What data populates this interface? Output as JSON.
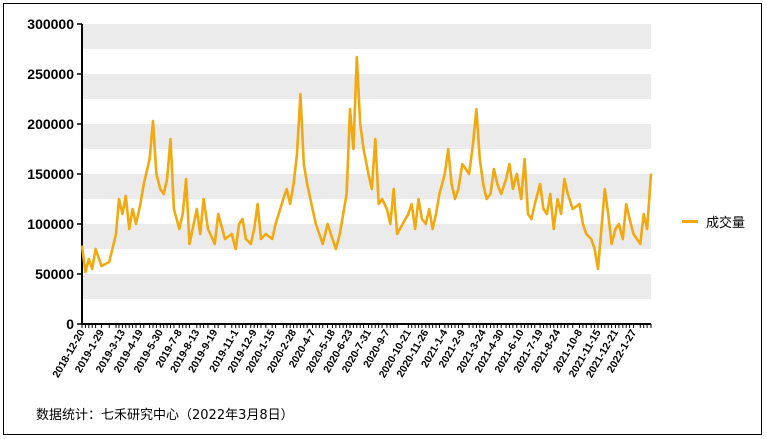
{
  "chart_data": {
    "type": "line",
    "series": [
      {
        "name": "成交量",
        "color": "#F2A90F",
        "points": [
          [
            "2018-12-20",
            78000
          ],
          [
            "2018-12-27",
            52000
          ],
          [
            "2019-1-3",
            65000
          ],
          [
            "2019-1-10",
            55000
          ],
          [
            "2019-1-17",
            75000
          ],
          [
            "2019-1-29",
            58000
          ],
          [
            "2019-2-14",
            62000
          ],
          [
            "2019-2-28",
            90000
          ],
          [
            "2019-3-6",
            125000
          ],
          [
            "2019-3-13",
            110000
          ],
          [
            "2019-3-20",
            128000
          ],
          [
            "2019-3-27",
            95000
          ],
          [
            "2019-4-3",
            115000
          ],
          [
            "2019-4-10",
            100000
          ],
          [
            "2019-4-19",
            120000
          ],
          [
            "2019-4-26",
            140000
          ],
          [
            "2019-5-8",
            165000
          ],
          [
            "2019-5-15",
            203000
          ],
          [
            "2019-5-22",
            150000
          ],
          [
            "2019-5-30",
            135000
          ],
          [
            "2019-6-6",
            130000
          ],
          [
            "2019-6-13",
            145000
          ],
          [
            "2019-6-20",
            185000
          ],
          [
            "2019-6-27",
            115000
          ],
          [
            "2019-7-8",
            95000
          ],
          [
            "2019-7-15",
            110000
          ],
          [
            "2019-7-22",
            145000
          ],
          [
            "2019-7-29",
            80000
          ],
          [
            "2019-8-13",
            115000
          ],
          [
            "2019-8-20",
            90000
          ],
          [
            "2019-8-27",
            125000
          ],
          [
            "2019-9-5",
            95000
          ],
          [
            "2019-9-19",
            80000
          ],
          [
            "2019-9-26",
            110000
          ],
          [
            "2019-10-10",
            85000
          ],
          [
            "2019-10-24",
            90000
          ],
          [
            "2019-11-1",
            75000
          ],
          [
            "2019-11-8",
            100000
          ],
          [
            "2019-11-15",
            105000
          ],
          [
            "2019-11-22",
            85000
          ],
          [
            "2019-12-2",
            80000
          ],
          [
            "2019-12-9",
            95000
          ],
          [
            "2019-12-16",
            120000
          ],
          [
            "2019-12-23",
            85000
          ],
          [
            "2020-1-2",
            90000
          ],
          [
            "2020-1-15",
            85000
          ],
          [
            "2020-1-22",
            100000
          ],
          [
            "2020-2-7",
            125000
          ],
          [
            "2020-2-14",
            135000
          ],
          [
            "2020-2-21",
            120000
          ],
          [
            "2020-2-28",
            140000
          ],
          [
            "2020-3-6",
            170000
          ],
          [
            "2020-3-13",
            230000
          ],
          [
            "2020-3-20",
            160000
          ],
          [
            "2020-3-27",
            140000
          ],
          [
            "2020-4-7",
            115000
          ],
          [
            "2020-4-14",
            100000
          ],
          [
            "2020-4-21",
            90000
          ],
          [
            "2020-4-28",
            80000
          ],
          [
            "2020-5-8",
            100000
          ],
          [
            "2020-5-18",
            85000
          ],
          [
            "2020-5-25",
            75000
          ],
          [
            "2020-6-2",
            90000
          ],
          [
            "2020-6-9",
            110000
          ],
          [
            "2020-6-16",
            130000
          ],
          [
            "2020-6-23",
            215000
          ],
          [
            "2020-6-30",
            175000
          ],
          [
            "2020-7-7",
            267000
          ],
          [
            "2020-7-14",
            200000
          ],
          [
            "2020-7-21",
            175000
          ],
          [
            "2020-7-31",
            150000
          ],
          [
            "2020-8-7",
            135000
          ],
          [
            "2020-8-14",
            185000
          ],
          [
            "2020-8-21",
            120000
          ],
          [
            "2020-8-28",
            125000
          ],
          [
            "2020-9-7",
            115000
          ],
          [
            "2020-9-14",
            100000
          ],
          [
            "2020-9-21",
            135000
          ],
          [
            "2020-9-28",
            90000
          ],
          [
            "2020-10-21",
            110000
          ],
          [
            "2020-10-28",
            120000
          ],
          [
            "2020-11-4",
            95000
          ],
          [
            "2020-11-11",
            125000
          ],
          [
            "2020-11-18",
            105000
          ],
          [
            "2020-11-26",
            100000
          ],
          [
            "2020-12-3",
            115000
          ],
          [
            "2020-12-10",
            95000
          ],
          [
            "2020-12-17",
            110000
          ],
          [
            "2020-12-24",
            130000
          ],
          [
            "2021-1-4",
            150000
          ],
          [
            "2021-1-11",
            175000
          ],
          [
            "2021-1-18",
            140000
          ],
          [
            "2021-1-25",
            125000
          ],
          [
            "2021-2-1",
            135000
          ],
          [
            "2021-2-9",
            160000
          ],
          [
            "2021-2-23",
            150000
          ],
          [
            "2021-3-3",
            180000
          ],
          [
            "2021-3-10",
            215000
          ],
          [
            "2021-3-17",
            165000
          ],
          [
            "2021-3-24",
            140000
          ],
          [
            "2021-3-31",
            125000
          ],
          [
            "2021-4-8",
            130000
          ],
          [
            "2021-4-15",
            155000
          ],
          [
            "2021-4-22",
            140000
          ],
          [
            "2021-4-30",
            130000
          ],
          [
            "2021-5-10",
            145000
          ],
          [
            "2021-5-17",
            160000
          ],
          [
            "2021-5-24",
            135000
          ],
          [
            "2021-6-1",
            150000
          ],
          [
            "2021-6-10",
            125000
          ],
          [
            "2021-6-17",
            165000
          ],
          [
            "2021-6-24",
            110000
          ],
          [
            "2021-7-1",
            105000
          ],
          [
            "2021-7-8",
            120000
          ],
          [
            "2021-7-19",
            140000
          ],
          [
            "2021-7-26",
            115000
          ],
          [
            "2021-8-2",
            110000
          ],
          [
            "2021-8-9",
            130000
          ],
          [
            "2021-8-16",
            95000
          ],
          [
            "2021-8-24",
            125000
          ],
          [
            "2021-8-31",
            110000
          ],
          [
            "2021-9-7",
            145000
          ],
          [
            "2021-9-14",
            130000
          ],
          [
            "2021-9-24",
            115000
          ],
          [
            "2021-10-8",
            120000
          ],
          [
            "2021-10-15",
            100000
          ],
          [
            "2021-10-22",
            90000
          ],
          [
            "2021-11-1",
            85000
          ],
          [
            "2021-11-8",
            75000
          ],
          [
            "2021-11-15",
            55000
          ],
          [
            "2021-11-22",
            95000
          ],
          [
            "2021-11-29",
            135000
          ],
          [
            "2021-12-6",
            110000
          ],
          [
            "2021-12-13",
            80000
          ],
          [
            "2021-12-21",
            95000
          ],
          [
            "2021-12-28",
            100000
          ],
          [
            "2022-1-5",
            85000
          ],
          [
            "2022-1-12",
            120000
          ],
          [
            "2022-1-19",
            105000
          ],
          [
            "2022-1-27",
            90000
          ],
          [
            "2022-2-10",
            80000
          ],
          [
            "2022-2-17",
            110000
          ],
          [
            "2022-2-24",
            95000
          ],
          [
            "2022-3-4",
            150000
          ]
        ]
      }
    ],
    "x_tick_labels": [
      "2018-12-20",
      "2019-1-29",
      "2019-3-13",
      "2019-4-19",
      "2019-5-30",
      "2019-7-8",
      "2019-8-13",
      "2019-9-19",
      "2019-11-1",
      "2019-12-9",
      "2020-1-15",
      "2020-2-28",
      "2020-4-7",
      "2020-5-18",
      "2020-6-23",
      "2020-7-31",
      "2020-9-7",
      "2020-10-21",
      "2020-11-26",
      "2021-1-4",
      "2021-2-9",
      "2021-3-24",
      "2021-4-30",
      "2021-6-10",
      "2021-7-19",
      "2021-8-24",
      "2021-10-8",
      "2021-11-15",
      "2021-12-21",
      "2022-1-27"
    ],
    "y_ticks": [
      "0",
      "50000",
      "100000",
      "150000",
      "200000",
      "250000",
      "300000"
    ],
    "ylim": [
      0,
      300000
    ],
    "grid": "horizontal bands",
    "legend_position": "right",
    "legend": "成交量"
  },
  "footnote": "数据统计：七禾研究中心（2022年3月8日）"
}
